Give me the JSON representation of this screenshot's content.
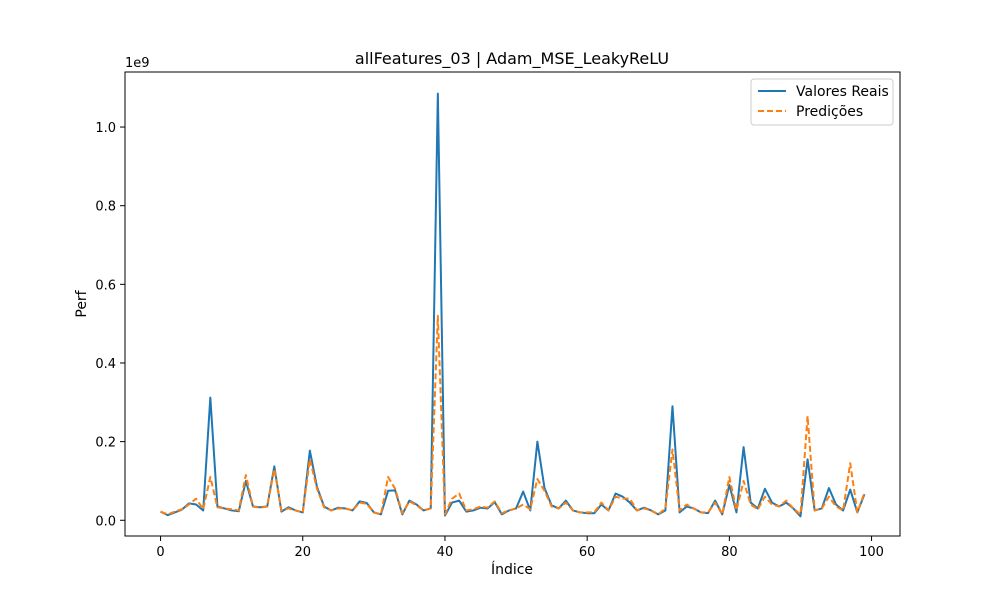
{
  "chart_data": {
    "type": "line",
    "title": "allFeatures_03 | Adam_MSE_LeakyReLU",
    "xlabel": "Índice",
    "ylabel": "Perf",
    "y_offset_label": "1e9",
    "xlim": [
      -5,
      104
    ],
    "ylim": [
      -0.04,
      1.14
    ],
    "x_ticks": [
      0,
      20,
      40,
      60,
      80,
      100
    ],
    "y_ticks": [
      0.0,
      0.2,
      0.4,
      0.6,
      0.8,
      1.0
    ],
    "y_tick_labels": [
      "0.0",
      "0.2",
      "0.4",
      "0.6",
      "0.8",
      "1.0"
    ],
    "grid": false,
    "legend_position": "top-right",
    "series": [
      {
        "name": "Valores Reais",
        "color": "#1f77b4",
        "style": "solid",
        "values": [
          0.022,
          0.013,
          0.02,
          0.027,
          0.043,
          0.04,
          0.025,
          0.312,
          0.035,
          0.03,
          0.025,
          0.023,
          0.1,
          0.035,
          0.033,
          0.035,
          0.137,
          0.022,
          0.033,
          0.025,
          0.02,
          0.177,
          0.085,
          0.035,
          0.025,
          0.032,
          0.03,
          0.025,
          0.048,
          0.044,
          0.02,
          0.015,
          0.075,
          0.076,
          0.015,
          0.05,
          0.04,
          0.025,
          0.03,
          1.085,
          0.012,
          0.045,
          0.05,
          0.022,
          0.025,
          0.032,
          0.03,
          0.046,
          0.015,
          0.025,
          0.03,
          0.073,
          0.025,
          0.2,
          0.082,
          0.038,
          0.03,
          0.05,
          0.025,
          0.02,
          0.018,
          0.018,
          0.04,
          0.025,
          0.068,
          0.06,
          0.045,
          0.025,
          0.032,
          0.025,
          0.015,
          0.025,
          0.29,
          0.02,
          0.035,
          0.03,
          0.02,
          0.018,
          0.05,
          0.015,
          0.09,
          0.02,
          0.186,
          0.045,
          0.03,
          0.08,
          0.045,
          0.035,
          0.045,
          0.03,
          0.01,
          0.155,
          0.025,
          0.03,
          0.082,
          0.04,
          0.025,
          0.078,
          0.02,
          0.066
        ]
      },
      {
        "name": "Predições",
        "color": "#ff7f0e",
        "style": "dashed",
        "values": [
          0.022,
          0.015,
          0.022,
          0.028,
          0.04,
          0.055,
          0.028,
          0.11,
          0.033,
          0.03,
          0.028,
          0.025,
          0.115,
          0.035,
          0.032,
          0.035,
          0.13,
          0.025,
          0.03,
          0.025,
          0.02,
          0.155,
          0.08,
          0.033,
          0.025,
          0.03,
          0.03,
          0.025,
          0.045,
          0.042,
          0.02,
          0.015,
          0.11,
          0.08,
          0.018,
          0.048,
          0.038,
          0.025,
          0.03,
          0.52,
          0.015,
          0.055,
          0.068,
          0.025,
          0.028,
          0.035,
          0.032,
          0.048,
          0.018,
          0.025,
          0.03,
          0.04,
          0.028,
          0.105,
          0.075,
          0.035,
          0.03,
          0.045,
          0.025,
          0.02,
          0.02,
          0.02,
          0.045,
          0.025,
          0.06,
          0.055,
          0.055,
          0.025,
          0.03,
          0.025,
          0.015,
          0.03,
          0.18,
          0.025,
          0.04,
          0.03,
          0.02,
          0.02,
          0.045,
          0.015,
          0.11,
          0.025,
          0.1,
          0.04,
          0.028,
          0.06,
          0.04,
          0.035,
          0.05,
          0.03,
          0.015,
          0.265,
          0.025,
          0.03,
          0.06,
          0.035,
          0.025,
          0.145,
          0.02,
          0.07
        ]
      }
    ]
  }
}
